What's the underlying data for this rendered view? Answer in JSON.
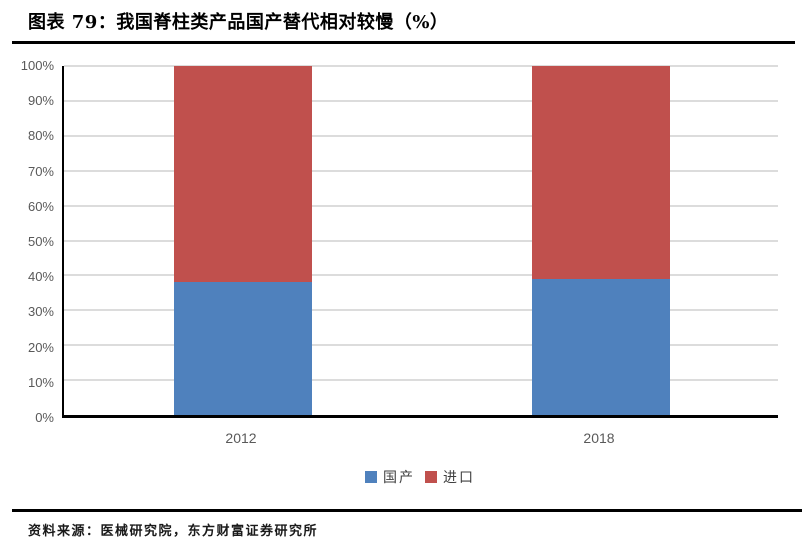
{
  "header": {
    "title": "图表 79：我国脊柱类产品国产替代相对较慢（%）"
  },
  "footer": {
    "source": "资料来源：医械研究院，东方财富证券研究所"
  },
  "chart_data": {
    "type": "bar",
    "stacked": true,
    "title": "图表 79：我国脊柱类产品国产替代相对较慢（%）",
    "categories": [
      "2012",
      "2018"
    ],
    "series": [
      {
        "name": "国产",
        "color": "#4F81BD",
        "values": [
          38,
          39
        ]
      },
      {
        "name": "进口",
        "color": "#C0504D",
        "values": [
          62,
          61
        ]
      }
    ],
    "xlabel": "",
    "ylabel": "",
    "ylim": [
      0,
      100
    ],
    "ytick_step": 10,
    "ytick_suffix": "%",
    "grid": true,
    "legend_position": "bottom",
    "colors": {
      "gridline": "#dcdcdc",
      "axis": "#000000",
      "tick_text": "#595959",
      "legend_text": "#3f3f3f"
    }
  }
}
